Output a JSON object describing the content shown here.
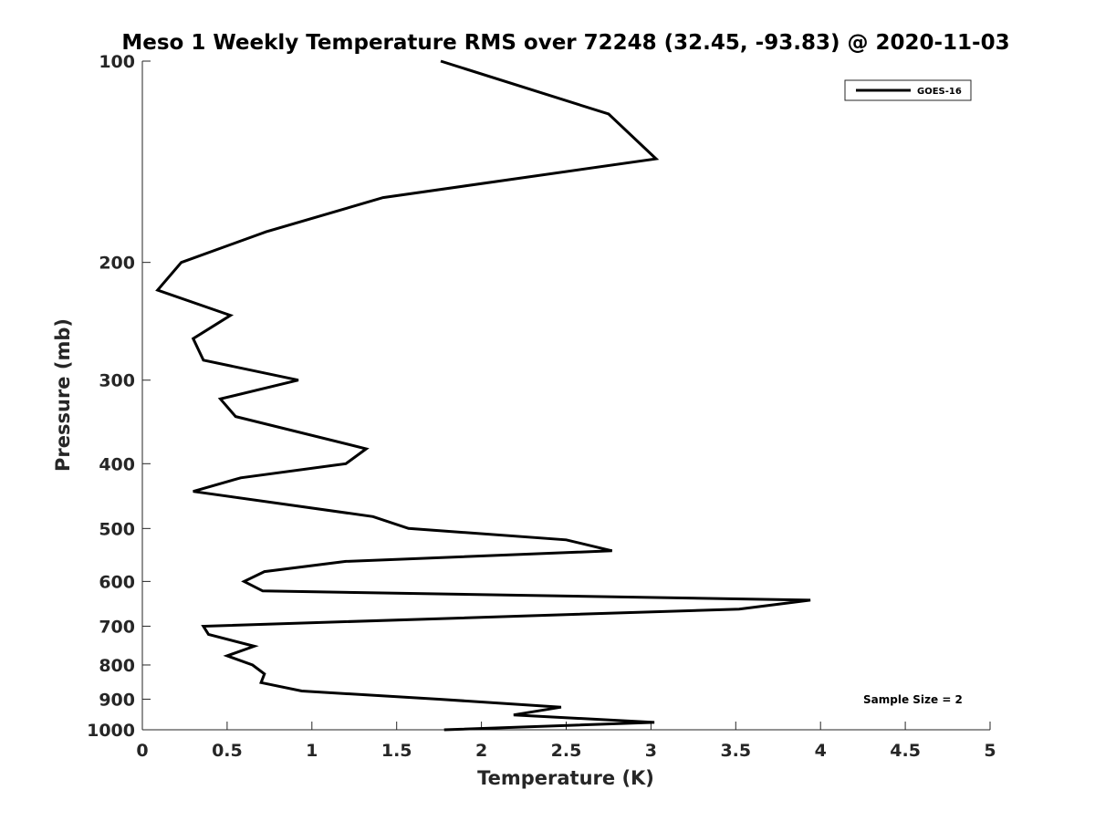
{
  "chart_data": {
    "type": "line",
    "title": "Meso 1 Weekly Temperature RMS over 72248 (32.45, -93.83) @ 2020-11-03",
    "xlabel": "Temperature (K)",
    "ylabel": "Pressure (mb)",
    "xlim": [
      0,
      5
    ],
    "ylim": [
      100,
      1000
    ],
    "y_scale": "log",
    "y_reversed": true,
    "x_ticks": [
      0,
      0.5,
      1,
      1.5,
      2,
      2.5,
      3,
      3.5,
      4,
      4.5,
      5
    ],
    "x_tick_labels": [
      "0",
      "0.5",
      "1",
      "1.5",
      "2",
      "2.5",
      "3",
      "3.5",
      "4",
      "4.5",
      "5"
    ],
    "y_ticks": [
      100,
      200,
      300,
      400,
      500,
      600,
      700,
      800,
      900,
      1000
    ],
    "y_tick_labels": [
      "100",
      "200",
      "300",
      "400",
      "500",
      "600",
      "700",
      "800",
      "900",
      "1000"
    ],
    "grid": false,
    "legend_position": "top-right",
    "series": [
      {
        "name": "GOES-16",
        "color": "#000000",
        "x": [
          1.76,
          2.75,
          3.03,
          1.42,
          0.73,
          0.23,
          0.09,
          0.52,
          0.3,
          0.36,
          0.92,
          0.46,
          0.55,
          1.32,
          1.2,
          0.58,
          0.3,
          1.36,
          1.57,
          2.5,
          2.77,
          1.2,
          0.72,
          0.6,
          0.71,
          3.94,
          3.52,
          0.36,
          0.39,
          0.66,
          0.5,
          0.65,
          0.72,
          0.7,
          0.94,
          1.75,
          2.47,
          2.19,
          3.02,
          1.78
        ],
        "y": [
          100,
          120,
          140,
          160,
          180,
          200,
          220,
          240,
          260,
          280,
          300,
          320,
          340,
          380,
          400,
          420,
          440,
          480,
          500,
          520,
          540,
          560,
          580,
          600,
          620,
          640,
          660,
          700,
          720,
          750,
          775,
          800,
          825,
          850,
          875,
          900,
          925,
          950,
          975,
          1000
        ]
      }
    ],
    "annotations": [
      "Sample Size = 2"
    ]
  }
}
